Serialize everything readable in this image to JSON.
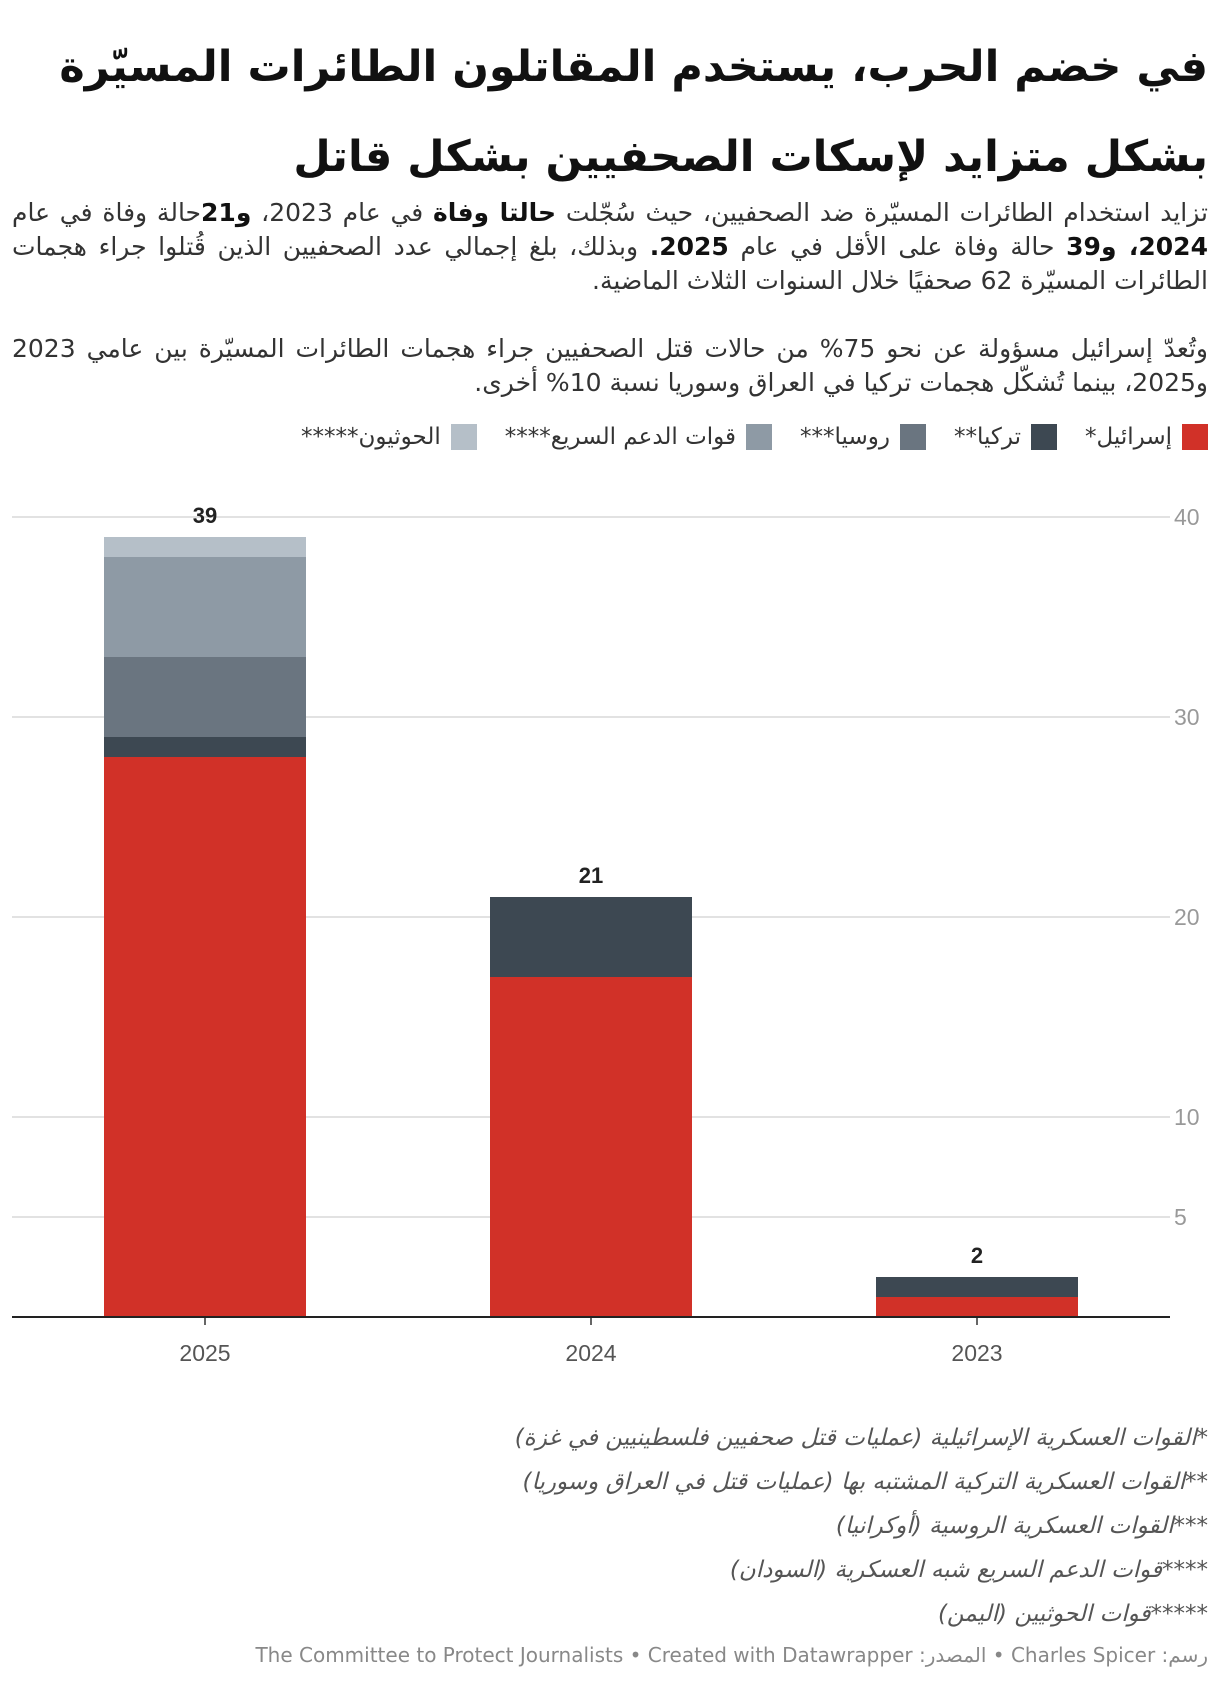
{
  "title": "في خضم الحرب، يستخدم المقاتلون الطائرات المسيّرة بشكل متزايد لإسكات الصحفيين بشكل قاتل",
  "intro": {
    "p1_a": "تزايد استخدام الطائرات المسيّرة ضد الصحفيين، حيث سُجّلت ",
    "p1_b": "حالتا وفاة",
    "p1_c": " في عام 2023، ",
    "p1_d": "و21",
    "p1_e": "حالة وفاة في عام ",
    "p1_f": "2024، و39",
    "p1_g": " حالة وفاة على الأقل في عام ",
    "p1_h": "2025.",
    "p1_i": " وبذلك، بلغ إجمالي عدد الصحفيين الذين قُتلوا جراء هجمات الطائرات المسيّرة 62 صحفيًا خلال السنوات الثلاث الماضية.",
    "p2": "وتُعدّ إسرائيل مسؤولة عن نحو 75% من حالات قتل الصحفيين جراء هجمات الطائرات المسيّرة بين عامي 2023 و2025، بينما تُشكّل هجمات تركيا في العراق وسوريا نسبة 10% أخرى."
  },
  "legend": [
    {
      "label": "إسرائيل*",
      "color": "#d13128"
    },
    {
      "label": "تركيا**",
      "color": "#3d4852"
    },
    {
      "label": "روسيا***",
      "color": "#6a7580"
    },
    {
      "label": "قوات الدعم السريع****",
      "color": "#8e9aa5"
    },
    {
      "label": "الحوثيون*****",
      "color": "#b5bfc8"
    }
  ],
  "chart_data": {
    "type": "bar",
    "stacked": true,
    "categories": [
      "2025",
      "2024",
      "2023"
    ],
    "series": [
      {
        "name": "إسرائيل*",
        "color": "#d13128",
        "values": [
          28,
          17,
          1
        ]
      },
      {
        "name": "تركيا**",
        "color": "#3d4852",
        "values": [
          1,
          4,
          1
        ]
      },
      {
        "name": "روسيا***",
        "color": "#6a7580",
        "values": [
          4,
          0,
          0
        ]
      },
      {
        "name": "قوات الدعم السريع****",
        "color": "#8e9aa5",
        "values": [
          5,
          0,
          0
        ]
      },
      {
        "name": "الحوثيون*****",
        "color": "#b5bfc8",
        "values": [
          1,
          0,
          0
        ]
      }
    ],
    "totals": [
      "39",
      "21",
      "2"
    ],
    "yticks": [
      "5",
      "10",
      "20",
      "30",
      "40"
    ],
    "ylim": [
      0,
      40
    ],
    "grid": true
  },
  "footnotes": [
    "*القوات العسكرية الإسرائيلية (عمليات قتل صحفيين فلسطينيين في غزة)",
    "**القوات العسكرية التركية المشتبه بها (عمليات قتل في العراق وسوريا)",
    "***القوات العسكرية الروسية (أوكرانيا)",
    "****قوات الدعم السريع شبه العسكرية (السودان)",
    "*****قوات الحوثيين (اليمن)"
  ],
  "credit": "رسم: Charles Spicer • المصدر: The Committee to Protect Journalists • Created with Datawrapper"
}
